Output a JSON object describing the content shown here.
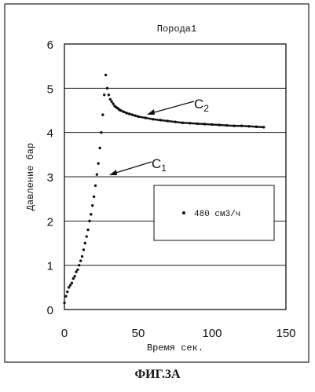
{
  "chart_data": {
    "type": "scatter",
    "title": "Порода1",
    "xlabel": "Время сек.",
    "ylabel": "Давление бар",
    "xlim": [
      0,
      150
    ],
    "ylim": [
      0,
      6
    ],
    "xticks": [
      "0",
      "50",
      "100",
      "150"
    ],
    "yticks": [
      "0",
      "1",
      "2",
      "3",
      "4",
      "5",
      "6"
    ],
    "grid": "horizontal",
    "legend": {
      "position": "center-right",
      "entries": [
        "480 см3/ч"
      ]
    },
    "series": [
      {
        "name": "480 см3/ч",
        "x": [
          0,
          1,
          2,
          3,
          4,
          5,
          6,
          7,
          8,
          9,
          10,
          11,
          12,
          13,
          14,
          15,
          16,
          17,
          18,
          19,
          20,
          21,
          22,
          23,
          24,
          25,
          26,
          27,
          28,
          29,
          30,
          31,
          32,
          33,
          34,
          35,
          36,
          37,
          38,
          40,
          42,
          44,
          46,
          48,
          50,
          55,
          60,
          65,
          70,
          75,
          80,
          85,
          90,
          95,
          100,
          105,
          110,
          115,
          120,
          125,
          130,
          135
        ],
        "y": [
          0.15,
          0.3,
          0.4,
          0.5,
          0.55,
          0.6,
          0.7,
          0.75,
          0.85,
          0.9,
          1.0,
          1.1,
          1.2,
          1.35,
          1.5,
          1.65,
          1.8,
          2.0,
          2.15,
          2.35,
          2.55,
          2.8,
          3.05,
          3.3,
          3.65,
          4.0,
          4.4,
          4.85,
          5.3,
          5.0,
          4.85,
          4.75,
          4.7,
          4.65,
          4.6,
          4.57,
          4.55,
          4.52,
          4.5,
          4.47,
          4.44,
          4.42,
          4.4,
          4.38,
          4.36,
          4.33,
          4.3,
          4.28,
          4.26,
          4.24,
          4.22,
          4.21,
          4.2,
          4.19,
          4.18,
          4.17,
          4.16,
          4.15,
          4.15,
          4.14,
          4.13,
          4.12
        ]
      }
    ],
    "annotations": [
      {
        "label": "C2",
        "x": 60,
        "y": 4.35
      },
      {
        "label": "C1",
        "x": 30,
        "y": 3.05
      }
    ]
  },
  "caption": "ФИГ.3А"
}
